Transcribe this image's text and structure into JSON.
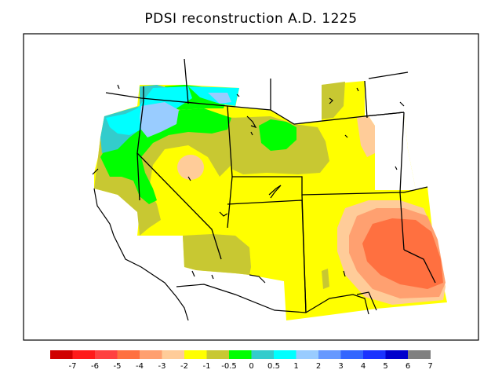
{
  "title": "PDSI reconstruction A.D. 1225",
  "colorbar": {
    "colors": [
      "#d00000",
      "#ff1a1a",
      "#ff4040",
      "#ff7040",
      "#ffa070",
      "#ffcc99",
      "#ffff00",
      "#c8c832",
      "#00ff00",
      "#33cccc",
      "#00ffff",
      "#99ccff",
      "#6699ff",
      "#3366ff",
      "#1a33ff",
      "#0000cc",
      "#808080"
    ],
    "tick_labels": [
      "-7",
      "-6",
      "-5",
      "-4",
      "-3",
      "-2",
      "-1",
      "-0.5",
      "0",
      "0.5",
      "1",
      "2",
      "3",
      "4",
      "5",
      "6",
      "7"
    ]
  },
  "legend_palette": {
    "severe_drought": "#ff6633",
    "moderate_drought": "#ffa070",
    "mild_drought": "#ffcc99",
    "near_normal_dry": "#ffff00",
    "slightly_dry": "#c8c832",
    "normal": "#00ff00",
    "slightly_wet": "#33cccc",
    "wet": "#00ffff",
    "very_wet": "#99ccff"
  }
}
